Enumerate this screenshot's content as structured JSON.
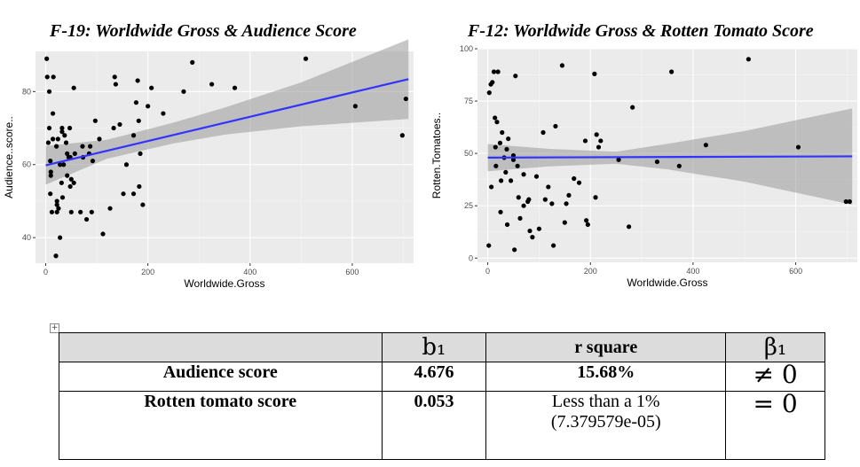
{
  "chart_data": [
    {
      "type": "scatter",
      "title": "F-19: Worldwide Gross & Audience Score",
      "xlabel": "Worldwide.Gross",
      "ylabel": "Audience..score..",
      "xlim": [
        -20,
        720
      ],
      "ylim": [
        33,
        91
      ],
      "xticks": [
        0,
        200,
        400,
        600
      ],
      "yticks": [
        40,
        60,
        80
      ],
      "grid": true,
      "fit": {
        "x0": 0,
        "y0": 59.8,
        "x1": 710,
        "y1": 83.4
      },
      "band": {
        "x": [
          0,
          120,
          250,
          350,
          500,
          710
        ],
        "lower": [
          54.5,
          61.6,
          65.8,
          68.2,
          70.5,
          72.5
        ],
        "upper": [
          65.1,
          66.8,
          71.5,
          75.6,
          82.5,
          94.3
        ]
      },
      "points": [
        [
          2,
          89
        ],
        [
          3,
          84
        ],
        [
          5,
          66
        ],
        [
          7,
          80
        ],
        [
          7,
          70
        ],
        [
          9,
          61
        ],
        [
          9,
          52
        ],
        [
          10,
          58
        ],
        [
          10,
          57
        ],
        [
          12,
          47
        ],
        [
          14,
          67
        ],
        [
          14,
          74
        ],
        [
          15,
          84
        ],
        [
          20,
          35
        ],
        [
          21,
          65
        ],
        [
          22,
          50
        ],
        [
          22,
          49
        ],
        [
          22,
          47
        ],
        [
          24,
          67
        ],
        [
          25,
          48
        ],
        [
          28,
          60
        ],
        [
          28,
          40
        ],
        [
          31,
          55
        ],
        [
          32,
          69
        ],
        [
          32,
          70
        ],
        [
          33,
          51
        ],
        [
          35,
          60
        ],
        [
          37,
          68
        ],
        [
          40,
          66
        ],
        [
          42,
          63
        ],
        [
          42,
          57
        ],
        [
          45,
          62
        ],
        [
          47,
          70
        ],
        [
          48,
          62
        ],
        [
          48,
          54
        ],
        [
          50,
          47
        ],
        [
          50,
          56
        ],
        [
          55,
          81
        ],
        [
          55,
          55
        ],
        [
          57,
          63
        ],
        [
          68,
          47
        ],
        [
          72,
          65
        ],
        [
          73,
          62
        ],
        [
          80,
          45
        ],
        [
          85,
          63
        ],
        [
          87,
          65
        ],
        [
          90,
          47
        ],
        [
          92,
          61
        ],
        [
          97,
          72
        ],
        [
          105,
          67
        ],
        [
          112,
          41
        ],
        [
          126,
          48
        ],
        [
          133,
          70
        ],
        [
          135,
          84
        ],
        [
          137,
          82
        ],
        [
          145,
          71
        ],
        [
          152,
          52
        ],
        [
          158,
          60
        ],
        [
          172,
          52
        ],
        [
          172,
          68
        ],
        [
          177,
          77
        ],
        [
          180,
          83
        ],
        [
          182,
          72
        ],
        [
          183,
          54
        ],
        [
          185,
          63
        ],
        [
          190,
          49
        ],
        [
          200,
          76
        ],
        [
          207,
          81
        ],
        [
          230,
          74
        ],
        [
          270,
          80
        ],
        [
          287,
          88
        ],
        [
          325,
          82
        ],
        [
          370,
          81
        ],
        [
          509,
          89
        ],
        [
          606,
          76
        ],
        [
          698,
          68
        ],
        [
          705,
          78
        ]
      ]
    },
    {
      "type": "scatter",
      "title": "F-12: Worldwide Gross & Rotten Tomato Score",
      "xlabel": "Worldwide.Gross",
      "ylabel": "Rotten.Tomatoes..",
      "xlim": [
        -20,
        720
      ],
      "ylim": [
        -2,
        100
      ],
      "xticks": [
        0,
        200,
        400,
        600
      ],
      "yticks": [
        0,
        25,
        50,
        75,
        100
      ],
      "grid": true,
      "fit": {
        "x0": 0,
        "y0": 48.0,
        "x1": 710,
        "y1": 48.6
      },
      "band": {
        "x": [
          0,
          120,
          250,
          350,
          500,
          710
        ],
        "lower": [
          41.5,
          43.8,
          45.1,
          42.4,
          36.5,
          25.5
        ],
        "upper": [
          54.5,
          52.2,
          50.8,
          54.6,
          60.7,
          71.5
        ]
      },
      "points": [
        [
          2,
          6
        ],
        [
          3,
          79
        ],
        [
          6,
          83
        ],
        [
          7,
          34
        ],
        [
          9,
          84
        ],
        [
          12,
          89
        ],
        [
          14,
          67
        ],
        [
          15,
          53
        ],
        [
          16,
          44
        ],
        [
          18,
          65
        ],
        [
          20,
          89
        ],
        [
          24,
          55
        ],
        [
          25,
          22
        ],
        [
          26,
          37
        ],
        [
          28,
          60
        ],
        [
          32,
          48
        ],
        [
          35,
          41
        ],
        [
          37,
          52
        ],
        [
          38,
          16
        ],
        [
          40,
          57
        ],
        [
          45,
          37
        ],
        [
          50,
          47
        ],
        [
          50,
          49
        ],
        [
          52,
          4
        ],
        [
          54,
          87
        ],
        [
          58,
          44
        ],
        [
          60,
          29
        ],
        [
          63,
          19
        ],
        [
          70,
          40
        ],
        [
          70,
          25
        ],
        [
          78,
          27
        ],
        [
          80,
          28
        ],
        [
          82,
          13
        ],
        [
          87,
          10
        ],
        [
          95,
          39
        ],
        [
          100,
          14
        ],
        [
          108,
          60
        ],
        [
          112,
          28
        ],
        [
          118,
          34
        ],
        [
          125,
          26
        ],
        [
          128,
          6
        ],
        [
          132,
          63
        ],
        [
          145,
          92
        ],
        [
          150,
          17
        ],
        [
          153,
          26
        ],
        [
          158,
          30
        ],
        [
          168,
          38
        ],
        [
          178,
          36
        ],
        [
          190,
          56
        ],
        [
          192,
          18
        ],
        [
          195,
          16
        ],
        [
          208,
          88
        ],
        [
          210,
          29
        ],
        [
          212,
          59
        ],
        [
          216,
          53
        ],
        [
          220,
          56
        ],
        [
          255,
          47
        ],
        [
          275,
          15
        ],
        [
          282,
          72
        ],
        [
          330,
          46
        ],
        [
          358,
          89
        ],
        [
          373,
          44
        ],
        [
          425,
          54
        ],
        [
          508,
          95
        ],
        [
          605,
          53
        ],
        [
          698,
          27
        ],
        [
          705,
          27
        ]
      ]
    }
  ],
  "table": {
    "header": {
      "col_b1": "b₁",
      "col_r2": "r square",
      "col_beta": "β₁"
    },
    "rows": [
      {
        "label": "Audience score",
        "b1": "4.676",
        "r2": "15.68%",
        "beta": "≠ 0"
      },
      {
        "label": "Rotten tomato score",
        "b1": "0.053",
        "r2_line1": "Less than a 1%",
        "r2_line2": "(7.379579e-05)",
        "beta": "= 0"
      }
    ]
  }
}
